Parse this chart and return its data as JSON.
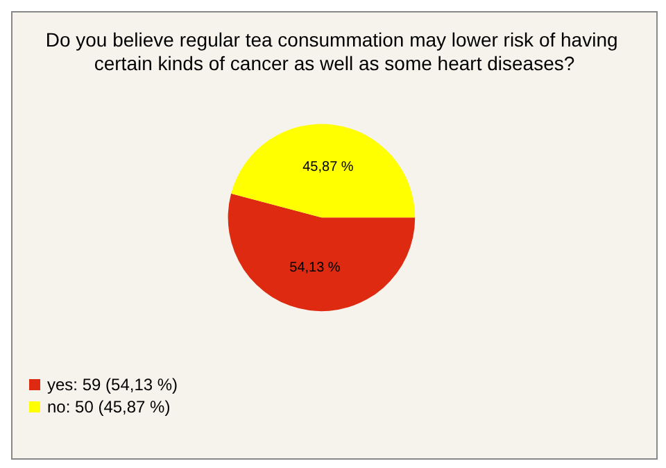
{
  "chart_data": {
    "type": "pie",
    "title": "Do you believe regular tea consummation may lower risk of having certain kinds of cancer as well as some heart diseases?",
    "categories": [
      "yes: 59 (54,13 %)",
      "no: 50 (45,87 %)"
    ],
    "values": [
      54.13,
      45.87
    ],
    "value_labels": [
      "54,13 %",
      "45,87 %"
    ],
    "colors": [
      "#dd2a10",
      "#ffff00"
    ],
    "legend": "bottom left"
  }
}
